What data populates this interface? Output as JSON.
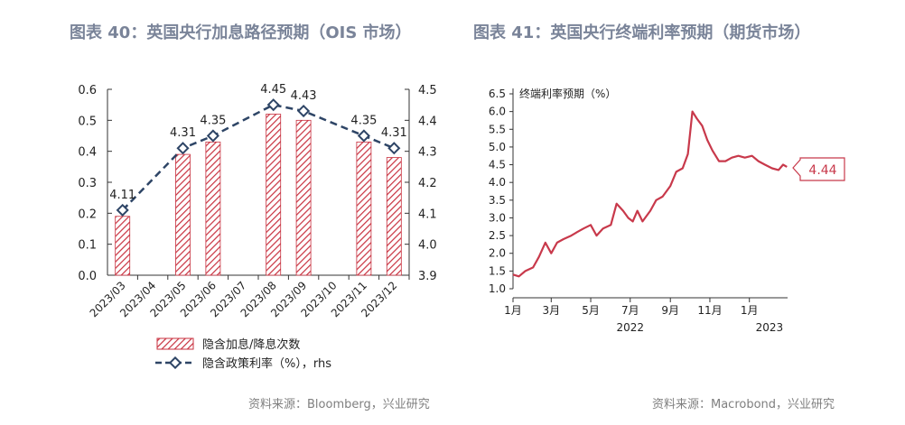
{
  "left": {
    "title": "图表 40：英国央行加息路径预期（OIS 市场）",
    "source": "资料来源：Bloomberg，兴业研究",
    "legend": {
      "bar": "隐含加息/降息次数",
      "line": "隐含政策利率（%），rhs"
    }
  },
  "right": {
    "title": "图表 41：英国央行终端利率预期（期货市场）",
    "source": "资料来源：Macrobond，兴业研究",
    "series_title": "终端利率预期（%）",
    "last_value": "4.44"
  },
  "colors": {
    "bar_stripe": "#c8313f",
    "line": "#2e4566",
    "series": "#c8394b",
    "title": "#7a8499"
  },
  "chart_data": [
    {
      "type": "bar",
      "categories": [
        "2023/03",
        "2023/04",
        "2023/05",
        "2023/06",
        "2023/07",
        "2023/08",
        "2023/09",
        "2023/10",
        "2023/11",
        "2023/12"
      ],
      "series": [
        {
          "name": "隐含加息/降息次数",
          "axis": "left",
          "type": "bar",
          "values": [
            0.19,
            null,
            0.39,
            0.43,
            null,
            0.52,
            0.5,
            null,
            0.43,
            0.38
          ]
        },
        {
          "name": "隐含政策利率（%），rhs",
          "axis": "right",
          "type": "line",
          "values": [
            4.11,
            null,
            4.31,
            4.35,
            null,
            4.45,
            4.43,
            null,
            4.35,
            4.31
          ],
          "labels": [
            "4.11",
            null,
            "4.31",
            "4.35",
            null,
            "4.45",
            "4.43",
            null,
            "4.35",
            "4.31"
          ]
        }
      ],
      "ylim": [
        0.0,
        0.6
      ],
      "y_ticks": [
        "0.0",
        "0.1",
        "0.2",
        "0.3",
        "0.4",
        "0.5",
        "0.6"
      ],
      "y2lim": [
        3.9,
        4.5
      ],
      "y2_ticks": [
        "3.9",
        "4.0",
        "4.1",
        "4.2",
        "4.3",
        "4.4",
        "4.5"
      ],
      "grid": false,
      "legend_position": "bottom"
    },
    {
      "type": "line",
      "title": "终端利率预期（%）",
      "x_ticks": [
        "1月",
        "3月",
        "5月",
        "7月",
        "9月",
        "11月",
        "1月"
      ],
      "year_labels": [
        "2022",
        "2023"
      ],
      "ylim": [
        1.0,
        6.5
      ],
      "y_ticks": [
        "1.0",
        "1.5",
        "2.0",
        "2.5",
        "3.0",
        "3.5",
        "4.0",
        "4.5",
        "5.0",
        "5.5",
        "6.0",
        "6.5"
      ],
      "grid": false,
      "series": [
        {
          "name": "终端利率预期（%）",
          "x": [
            "2022-01-01",
            "2022-01-10",
            "2022-01-20",
            "2022-02-01",
            "2022-02-10",
            "2022-02-20",
            "2022-03-01",
            "2022-03-10",
            "2022-03-20",
            "2022-04-01",
            "2022-04-10",
            "2022-04-20",
            "2022-05-01",
            "2022-05-10",
            "2022-05-20",
            "2022-06-01",
            "2022-06-10",
            "2022-06-20",
            "2022-06-28",
            "2022-07-05",
            "2022-07-12",
            "2022-07-20",
            "2022-08-01",
            "2022-08-10",
            "2022-08-20",
            "2022-09-01",
            "2022-09-10",
            "2022-09-20",
            "2022-09-28",
            "2022-10-05",
            "2022-10-12",
            "2022-10-20",
            "2022-10-28",
            "2022-11-05",
            "2022-11-15",
            "2022-11-25",
            "2022-12-05",
            "2022-12-15",
            "2022-12-25",
            "2023-01-05",
            "2023-01-15",
            "2023-01-25",
            "2023-02-05",
            "2023-02-15",
            "2023-02-22",
            "2023-02-28"
          ],
          "y": [
            1.4,
            1.35,
            1.5,
            1.6,
            1.9,
            2.3,
            2.0,
            2.3,
            2.4,
            2.5,
            2.6,
            2.7,
            2.8,
            2.5,
            2.7,
            2.8,
            3.4,
            3.2,
            3.0,
            2.9,
            3.2,
            2.9,
            3.2,
            3.5,
            3.6,
            3.9,
            4.3,
            4.4,
            4.8,
            6.0,
            5.8,
            5.6,
            5.2,
            4.9,
            4.6,
            4.6,
            4.7,
            4.75,
            4.7,
            4.75,
            4.6,
            4.5,
            4.4,
            4.35,
            4.5,
            4.44
          ]
        }
      ]
    }
  ]
}
